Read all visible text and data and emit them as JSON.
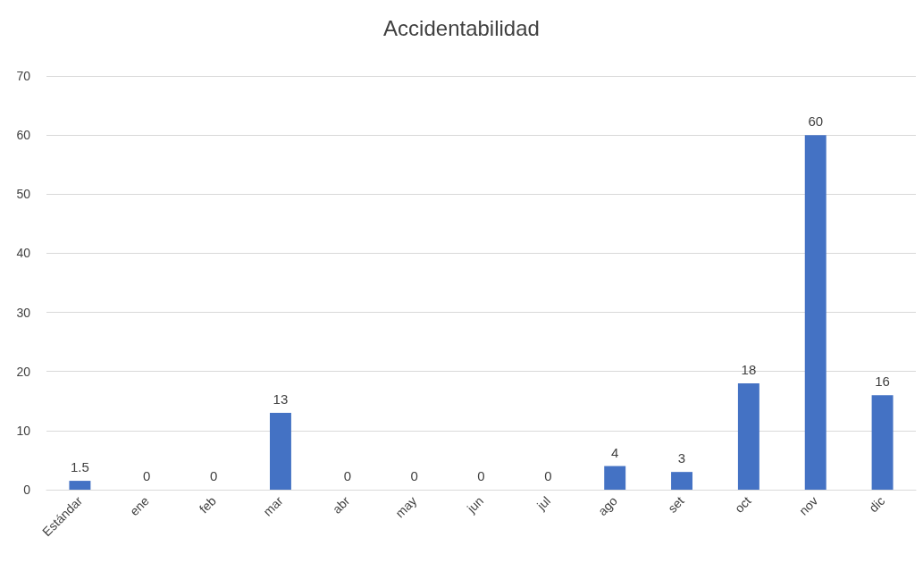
{
  "chart_data": {
    "type": "bar",
    "title": "Accidentabilidad",
    "categories": [
      "Estándar",
      "ene",
      "feb",
      "mar",
      "abr",
      "may",
      "jun",
      "jul",
      "ago",
      "set",
      "oct",
      "nov",
      "dic"
    ],
    "values": [
      1.5,
      0,
      0,
      13,
      0,
      0,
      0,
      0,
      4,
      3,
      18,
      60,
      16
    ],
    "color": "#4472c4",
    "ylim": [
      0,
      70
    ],
    "yticks": [
      0,
      10,
      20,
      30,
      40,
      50,
      60,
      70
    ],
    "grid": "y",
    "data_labels": true
  }
}
